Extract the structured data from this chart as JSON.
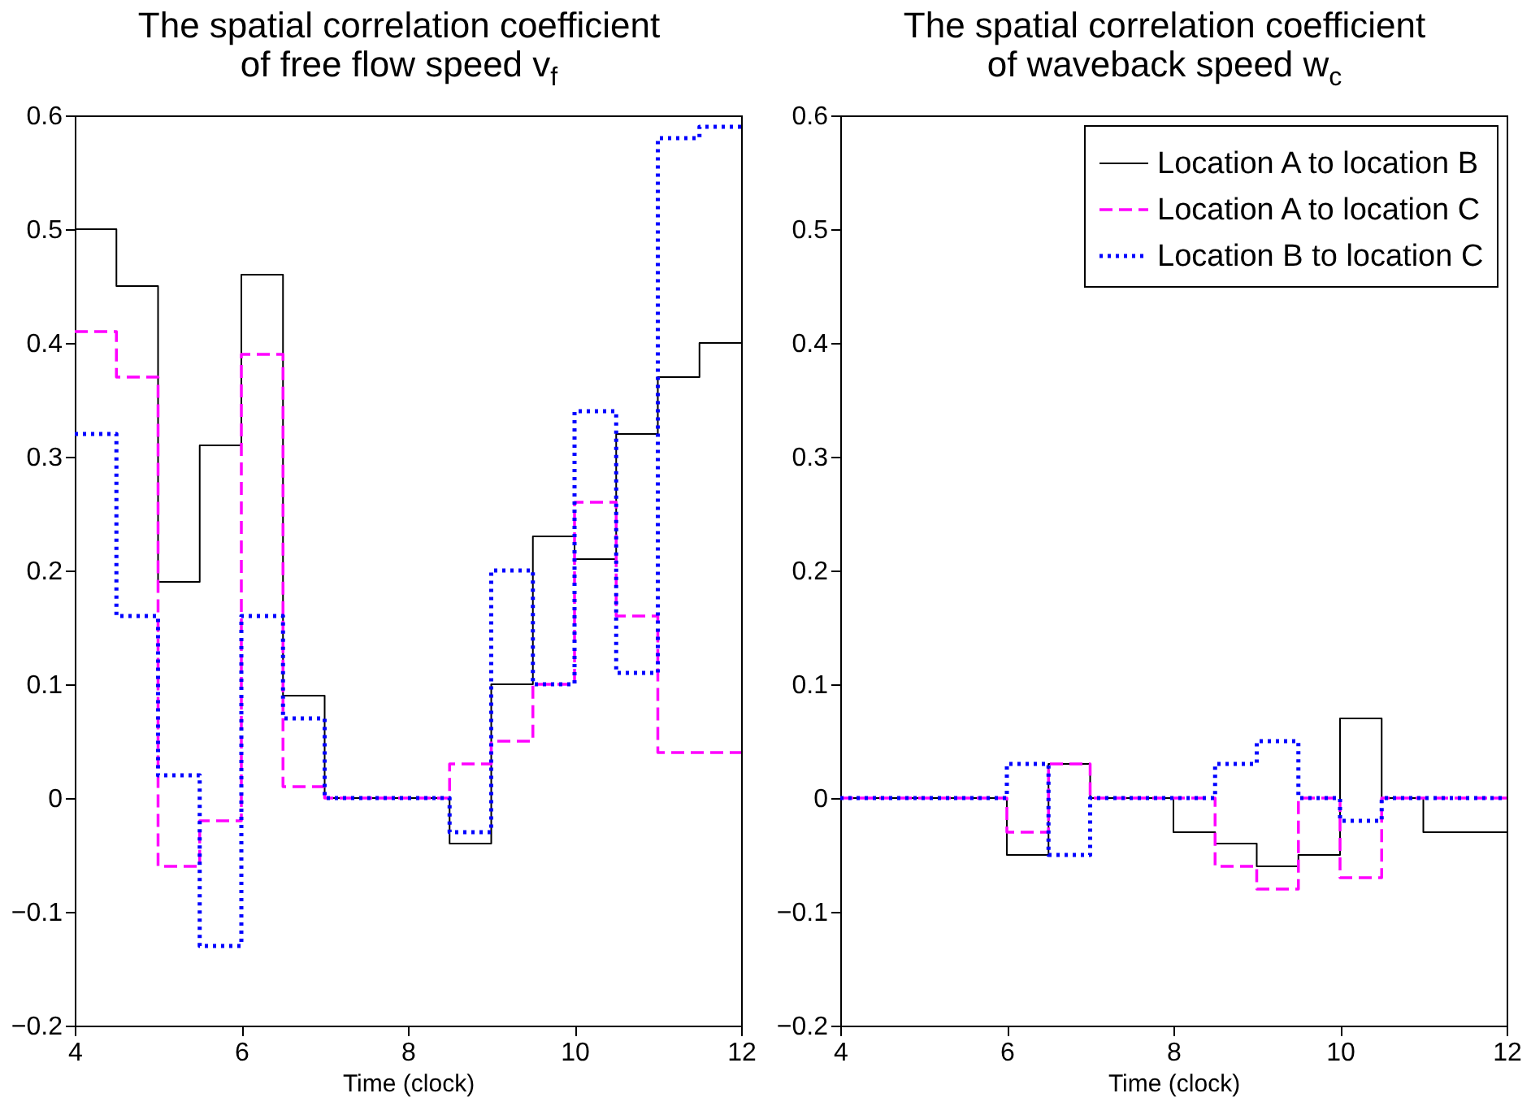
{
  "chart_data": [
    {
      "type": "step",
      "title": "The spatial correlation coefficient\nof free flow speed v$_{f}$",
      "xlabel": "Time (clock)",
      "x": [
        4,
        4.5,
        5,
        5.5,
        6,
        6.5,
        7,
        7.5,
        8,
        8.5,
        9,
        9.5,
        10,
        10.5,
        11,
        11.5,
        12
      ],
      "series": [
        {
          "color": "#000000",
          "line_style": "solid",
          "values": [
            0.5,
            0.45,
            0.19,
            0.31,
            0.46,
            0.09,
            0,
            0,
            0,
            -0.04,
            0.1,
            0.23,
            0.21,
            0.32,
            0.37,
            0.4,
            0.4
          ]
        },
        {
          "color": "#ff00ff",
          "line_style": "dashed",
          "values": [
            0.41,
            0.37,
            -0.06,
            -0.02,
            0.39,
            0.01,
            0,
            0,
            0,
            0.03,
            0.05,
            0.1,
            0.26,
            0.16,
            0.04,
            0.04,
            0.04
          ]
        },
        {
          "color": "#0000ff",
          "line_style": "dotted",
          "values": [
            0.32,
            0.16,
            0.02,
            -0.13,
            0.16,
            0.07,
            0,
            0,
            0,
            -0.03,
            0.2,
            0.1,
            0.34,
            0.11,
            0.58,
            0.59,
            0.59
          ]
        }
      ],
      "xlim": [
        4,
        12
      ],
      "xticks": [
        4,
        6,
        8,
        10,
        12
      ],
      "ylim": [
        -0.2,
        0.6
      ],
      "yticks": [
        -0.2,
        -0.1,
        0,
        0.1,
        0.2,
        0.3,
        0.4,
        0.5,
        0.6
      ],
      "grid": false
    },
    {
      "type": "step",
      "title": "The spatial correlation coefficient\nof waveback speed w$_{c}$",
      "xlabel": "Time (clock)",
      "x": [
        4,
        4.5,
        5,
        5.5,
        6,
        6.5,
        7,
        7.5,
        8,
        8.5,
        9,
        9.5,
        10,
        10.5,
        11,
        11.5,
        12
      ],
      "series": [
        {
          "name": "Location A to location B",
          "color": "#000000",
          "line_style": "solid",
          "values": [
            0,
            0,
            0,
            0,
            -0.05,
            0.03,
            0,
            0,
            -0.03,
            -0.04,
            -0.06,
            -0.05,
            0.07,
            0,
            -0.03,
            -0.03,
            -0.03
          ]
        },
        {
          "name": "Location A to location C",
          "color": "#ff00ff",
          "line_style": "dashed",
          "values": [
            0,
            0,
            0,
            0,
            -0.03,
            0.03,
            0,
            0,
            0,
            -0.06,
            -0.08,
            0,
            -0.07,
            0,
            0,
            0,
            0
          ]
        },
        {
          "name": "Location B to location C",
          "color": "#0000ff",
          "line_style": "dotted",
          "values": [
            0,
            0,
            0,
            0,
            0.03,
            -0.05,
            0,
            0,
            0,
            0.03,
            0.05,
            0,
            -0.02,
            0,
            0,
            0,
            0
          ]
        }
      ],
      "xlim": [
        4,
        12
      ],
      "xticks": [
        4,
        6,
        8,
        10,
        12
      ],
      "ylim": [
        -0.2,
        0.6
      ],
      "yticks": [
        -0.2,
        -0.1,
        0,
        0.1,
        0.2,
        0.3,
        0.4,
        0.5,
        0.6
      ],
      "grid": false,
      "legend": "top right"
    }
  ]
}
